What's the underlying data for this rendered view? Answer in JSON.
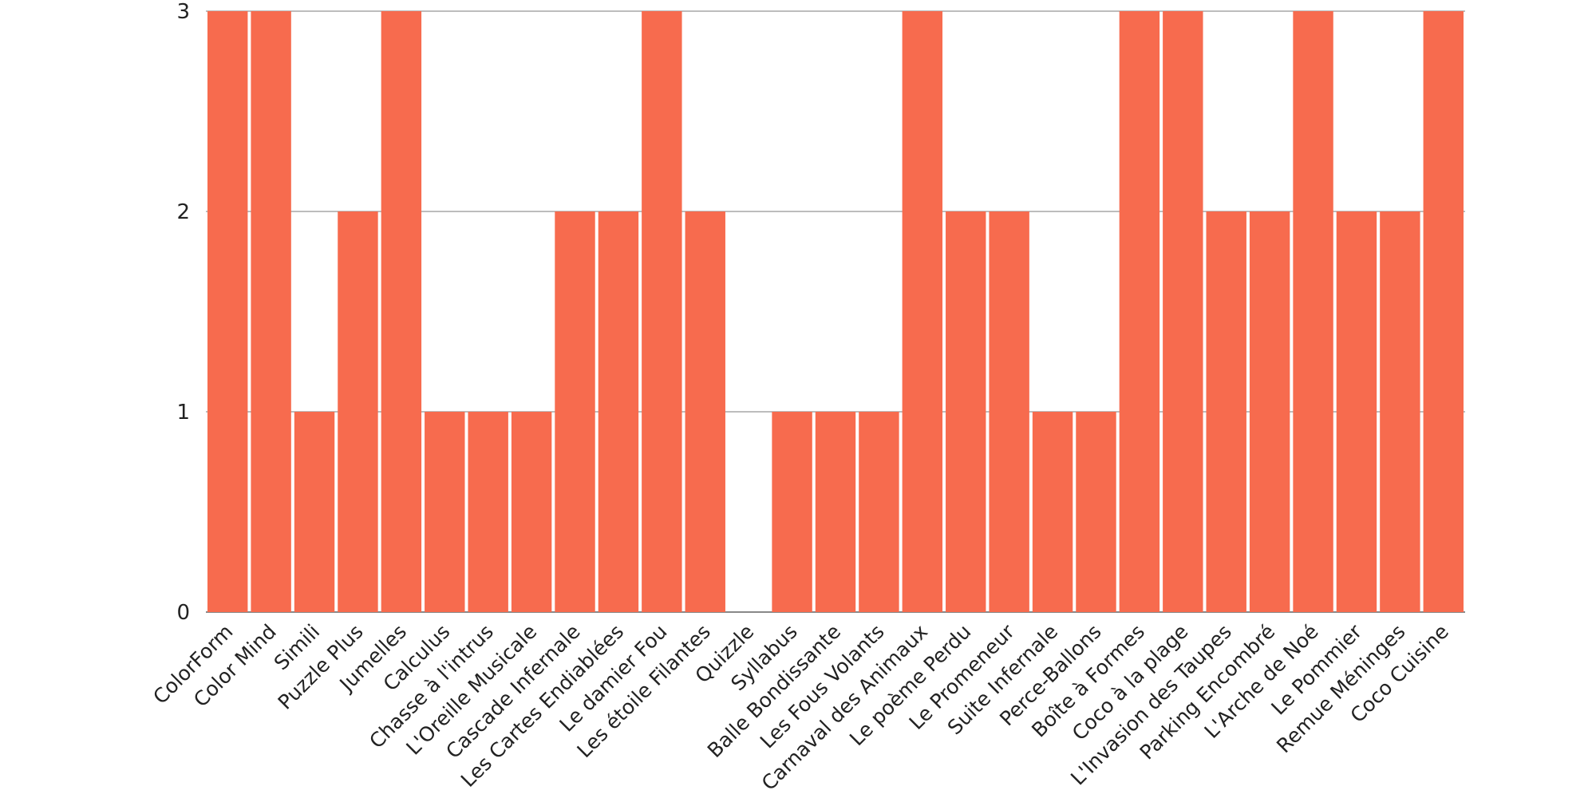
{
  "chart_data": {
    "type": "bar",
    "title": "",
    "xlabel": "",
    "ylabel": "",
    "ylim": [
      0,
      3
    ],
    "yticks": [
      "0",
      "1",
      "2",
      "3"
    ],
    "grid": true,
    "legend": "none",
    "bar_color": "#f76b4e",
    "categories": [
      "ColorForm",
      "Color Mind",
      "Simili",
      "Puzzle Plus",
      "Jumelles",
      "Calculus",
      "Chasse à l'intrus",
      "L'Oreille Musicale",
      "Cascade Infernale",
      "Les Cartes Endiablées",
      "Le damier Fou",
      "Les étoile Filantes",
      "Quizzle",
      "Syllabus",
      "Balle Bondissante",
      "Les Fous Volants",
      "Carnaval des Animaux",
      "Le poème Perdu",
      "Le Promeneur",
      "Suite Infernale",
      "Perce-Ballons",
      "Boîte à Formes",
      "Coco à la plage",
      "L'Invasion des Taupes",
      "Parking Encombré",
      "L'Arche de Noé",
      "Le Pommier",
      "Remue Méninges",
      "Coco Cuisine"
    ],
    "values": [
      3,
      3,
      1,
      2,
      3,
      1,
      1,
      1,
      2,
      2,
      3,
      2,
      0,
      1,
      1,
      1,
      3,
      2,
      2,
      1,
      1,
      3,
      3,
      2,
      2,
      3,
      2,
      2,
      3
    ]
  }
}
